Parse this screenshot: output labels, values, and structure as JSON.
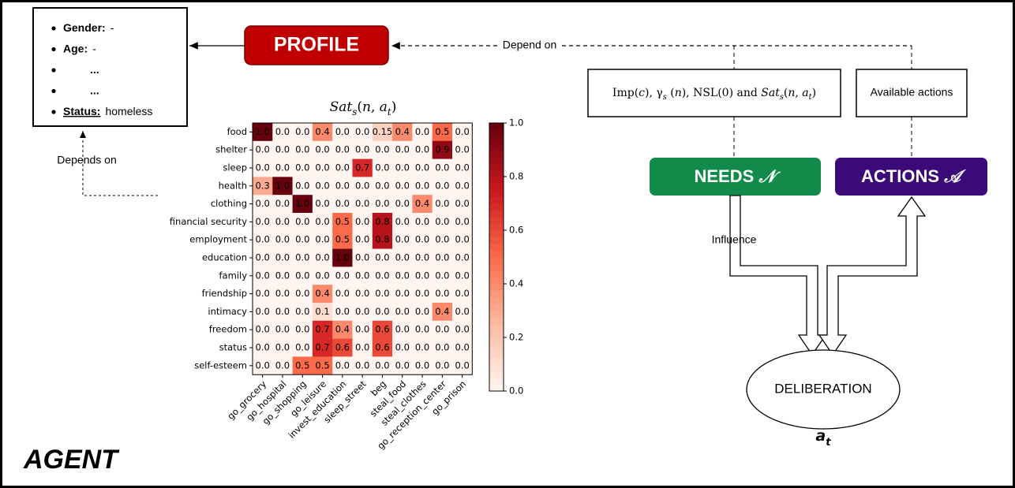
{
  "profile": {
    "items": [
      {
        "label": "Gender:",
        "value": "-"
      },
      {
        "label": "Age:",
        "value": "-"
      },
      {
        "value": "..."
      },
      {
        "value": "..."
      },
      {
        "label": "Status:",
        "value": "homeless"
      }
    ]
  },
  "profile_button": "PROFILE",
  "labels": {
    "depend_on": "Depend on",
    "depends_on": "Depends on",
    "influence": "Influence",
    "agent": "AGENT"
  },
  "condition_box": [
    {
      "text": "Imp(",
      "style": "normal"
    },
    {
      "text": "c",
      "style": "italic"
    },
    {
      "text": "), γ",
      "style": "normal"
    },
    {
      "text": "s",
      "style": "sub"
    },
    {
      "text": " (",
      "style": "normal"
    },
    {
      "text": "n",
      "style": "italic"
    },
    {
      "text": "), NSL(0) and ",
      "style": "normal"
    },
    {
      "text": "Sat",
      "style": "italic"
    },
    {
      "text": "s",
      "style": "sub"
    },
    {
      "text": "(",
      "style": "normal"
    },
    {
      "text": "n",
      "style": "italic"
    },
    {
      "text": ", ",
      "style": "normal"
    },
    {
      "text": "a",
      "style": "italic"
    },
    {
      "text": "t",
      "style": "sub"
    },
    {
      "text": ")",
      "style": "normal"
    }
  ],
  "actions_box": "Available actions",
  "needs": {
    "text": "NEEDS",
    "symbol": "𝒩"
  },
  "actions": {
    "text": "ACTIONS",
    "symbol": "𝒜"
  },
  "deliberation": {
    "label": "DELIBERATION",
    "output": [
      {
        "text": "a",
        "style": "italic"
      },
      {
        "text": "t",
        "style": "sub"
      }
    ]
  },
  "heatmap": {
    "title": [
      {
        "text": "Sat",
        "style": "italic"
      },
      {
        "text": "s",
        "style": "sub"
      },
      {
        "text": "(",
        "style": "normal"
      },
      {
        "text": "n",
        "style": "italic"
      },
      {
        "text": ", ",
        "style": "normal"
      },
      {
        "text": "a",
        "style": "italic"
      },
      {
        "text": "t",
        "style": "sub"
      },
      {
        "text": ")",
        "style": "normal"
      }
    ],
    "rows": [
      "food",
      "shelter",
      "sleep",
      "health",
      "clothing",
      "financial security",
      "employment",
      "education",
      "family",
      "friendship",
      "intimacy",
      "freedom",
      "status",
      "self-esteem"
    ],
    "columns": [
      "go_grocery",
      "go_hospital",
      "go_shopping",
      "go_leisure",
      "invest_education",
      "sleep_street",
      "beg",
      "steal_food",
      "steal_clothes",
      "go_reception_center",
      "go_prison"
    ],
    "cells": [
      [
        "1.0",
        "0.0",
        "0.0",
        "0.4",
        "0.0",
        "0.0",
        "0.15",
        "0.4",
        "0.0",
        "0.5",
        "0.0"
      ],
      [
        "0.0",
        "0.0",
        "0.0",
        "0.0",
        "0.0",
        "0.0",
        "0.0",
        "0.0",
        "0.0",
        "0.9",
        "0.0"
      ],
      [
        "0.0",
        "0.0",
        "0.0",
        "0.0",
        "0.0",
        "0.7",
        "0.0",
        "0.0",
        "0.0",
        "0.0",
        "0.0"
      ],
      [
        "0.3",
        "1.0",
        "0.0",
        "0.0",
        "0.0",
        "0.0",
        "0.0",
        "0.0",
        "0.0",
        "0.0",
        "0.0"
      ],
      [
        "0.0",
        "0.0",
        "1.0",
        "0.0",
        "0.0",
        "0.0",
        "0.0",
        "0.0",
        "0.4",
        "0.0",
        "0.0"
      ],
      [
        "0.0",
        "0.0",
        "0.0",
        "0.0",
        "0.5",
        "0.0",
        "0.8",
        "0.0",
        "0.0",
        "0.0",
        "0.0"
      ],
      [
        "0.0",
        "0.0",
        "0.0",
        "0.0",
        "0.5",
        "0.0",
        "0.8",
        "0.0",
        "0.0",
        "0.0",
        "0.0"
      ],
      [
        "0.0",
        "0.0",
        "0.0",
        "0.0",
        "1.0",
        "0.0",
        "0.0",
        "0.0",
        "0.0",
        "0.0",
        "0.0"
      ],
      [
        "0.0",
        "0.0",
        "0.0",
        "0.0",
        "0.0",
        "0.0",
        "0.0",
        "0.0",
        "0.0",
        "0.0",
        "0.0"
      ],
      [
        "0.0",
        "0.0",
        "0.0",
        "0.4",
        "0.0",
        "0.0",
        "0.0",
        "0.0",
        "0.0",
        "0.0",
        "0.0"
      ],
      [
        "0.0",
        "0.0",
        "0.0",
        "0.1",
        "0.0",
        "0.0",
        "0.0",
        "0.0",
        "0.0",
        "0.4",
        "0.0"
      ],
      [
        "0.0",
        "0.0",
        "0.0",
        "0.7",
        "0.4",
        "0.0",
        "0.6",
        "0.0",
        "0.0",
        "0.0",
        "0.0"
      ],
      [
        "0.0",
        "0.0",
        "0.0",
        "0.7",
        "0.6",
        "0.0",
        "0.6",
        "0.0",
        "0.0",
        "0.0",
        "0.0"
      ],
      [
        "0.0",
        "0.0",
        "0.5",
        "0.5",
        "0.0",
        "0.0",
        "0.0",
        "0.0",
        "0.0",
        "0.0",
        "0.0"
      ]
    ],
    "colorbar_ticks": [
      "0.0",
      "0.2",
      "0.4",
      "0.6",
      "0.8",
      "1.0"
    ]
  }
}
